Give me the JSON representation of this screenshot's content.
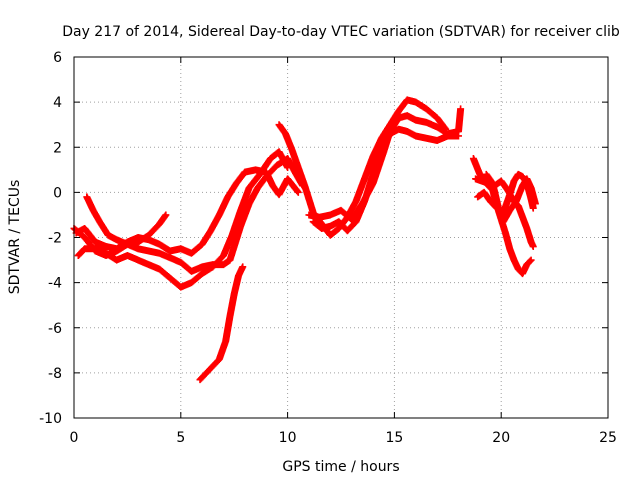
{
  "chart_data": {
    "type": "scatter",
    "title": "Day 217 of 2014, Sidereal Day-to-day VTEC variation (SDTVAR) for receiver clib",
    "xlabel": "GPS time / hours",
    "ylabel": "SDTVAR / TECUs",
    "xlim": [
      0,
      25
    ],
    "ylim": [
      -10,
      6
    ],
    "xticks": [
      0,
      5,
      10,
      15,
      20,
      25
    ],
    "yticks": [
      -10,
      -8,
      -6,
      -4,
      -2,
      0,
      2,
      4,
      6
    ],
    "grid": true,
    "marker": "+",
    "color": "#ff0000",
    "series": [
      {
        "points": [
          [
            0,
            -1.6
          ],
          [
            0.5,
            -2.0
          ],
          [
            1.0,
            -2.6
          ],
          [
            1.5,
            -2.8
          ],
          [
            2.0,
            -2.6
          ],
          [
            2.5,
            -2.3
          ],
          [
            3.0,
            -2.5
          ],
          [
            3.5,
            -2.6
          ],
          [
            4.0,
            -2.7
          ],
          [
            4.5,
            -2.9
          ],
          [
            5.0,
            -3.1
          ],
          [
            5.5,
            -3.5
          ],
          [
            6.0,
            -3.3
          ],
          [
            6.5,
            -3.2
          ],
          [
            7.0,
            -3.2
          ],
          [
            7.3,
            -3.0
          ],
          [
            7.5,
            -2.4
          ],
          [
            7.8,
            -1.5
          ],
          [
            8.2,
            -0.5
          ],
          [
            8.6,
            0.2
          ],
          [
            9.0,
            0.7
          ],
          [
            9.5,
            1.2
          ],
          [
            10.0,
            1.5
          ],
          [
            10.4,
            0.8
          ],
          [
            10.7,
            0.3
          ]
        ]
      },
      {
        "points": [
          [
            0.1,
            -1.8
          ],
          [
            0.5,
            -1.6
          ],
          [
            1.0,
            -2.2
          ],
          [
            1.5,
            -2.4
          ],
          [
            2.0,
            -2.5
          ],
          [
            2.5,
            -2.2
          ],
          [
            3.0,
            -2.0
          ],
          [
            3.5,
            -2.1
          ],
          [
            4.0,
            -2.3
          ],
          [
            4.5,
            -2.6
          ],
          [
            5.0,
            -2.5
          ],
          [
            5.5,
            -2.7
          ],
          [
            6.0,
            -2.3
          ],
          [
            6.4,
            -1.7
          ],
          [
            6.8,
            -1.0
          ],
          [
            7.2,
            -0.2
          ],
          [
            7.6,
            0.4
          ],
          [
            8.0,
            0.9
          ],
          [
            8.5,
            1.0
          ],
          [
            9.0,
            0.9
          ],
          [
            9.3,
            0.3
          ],
          [
            9.6,
            -0.1
          ],
          [
            10.0,
            0.6
          ],
          [
            10.5,
            0.0
          ]
        ]
      },
      {
        "points": [
          [
            0.2,
            -2.8
          ],
          [
            0.5,
            -2.5
          ],
          [
            1.0,
            -2.5
          ],
          [
            1.5,
            -2.7
          ],
          [
            2.0,
            -3.0
          ],
          [
            2.5,
            -2.8
          ],
          [
            3.0,
            -3.0
          ],
          [
            3.5,
            -3.2
          ],
          [
            4.0,
            -3.4
          ],
          [
            4.5,
            -3.8
          ],
          [
            5.0,
            -4.2
          ],
          [
            5.5,
            -4.0
          ],
          [
            6.0,
            -3.6
          ],
          [
            6.5,
            -3.3
          ],
          [
            7.0,
            -2.8
          ],
          [
            7.4,
            -1.9
          ],
          [
            7.8,
            -0.8
          ],
          [
            8.2,
            0.2
          ],
          [
            8.7,
            0.8
          ],
          [
            9.2,
            1.5
          ],
          [
            9.6,
            1.8
          ],
          [
            10.0,
            1.1
          ]
        ]
      },
      {
        "points": [
          [
            0.6,
            -0.2
          ],
          [
            0.9,
            -0.8
          ],
          [
            1.2,
            -1.3
          ],
          [
            1.6,
            -1.9
          ],
          [
            2.0,
            -2.1
          ],
          [
            2.5,
            -2.3
          ],
          [
            3.0,
            -2.2
          ],
          [
            3.5,
            -1.9
          ],
          [
            4.0,
            -1.4
          ],
          [
            4.3,
            -1.0
          ]
        ]
      },
      {
        "points": [
          [
            5.9,
            -8.3
          ],
          [
            6.3,
            -7.9
          ],
          [
            6.8,
            -7.4
          ],
          [
            7.1,
            -6.6
          ],
          [
            7.3,
            -5.5
          ],
          [
            7.5,
            -4.5
          ],
          [
            7.7,
            -3.7
          ],
          [
            7.9,
            -3.3
          ]
        ]
      },
      {
        "points": [
          [
            9.6,
            3.0
          ],
          [
            9.9,
            2.6
          ],
          [
            10.2,
            1.9
          ],
          [
            10.5,
            1.1
          ],
          [
            10.8,
            0.3
          ],
          [
            11.2,
            -0.9
          ],
          [
            11.6,
            -1.4
          ],
          [
            12.0,
            -1.9
          ],
          [
            12.4,
            -1.6
          ],
          [
            12.8,
            -1.1
          ],
          [
            13.2,
            -0.4
          ],
          [
            13.6,
            0.6
          ],
          [
            14.0,
            1.6
          ],
          [
            14.4,
            2.4
          ],
          [
            14.8,
            3.0
          ],
          [
            15.2,
            3.6
          ],
          [
            15.6,
            4.1
          ],
          [
            16.0,
            4.0
          ],
          [
            16.5,
            3.7
          ],
          [
            17.0,
            3.3
          ],
          [
            17.4,
            2.8
          ]
        ]
      },
      {
        "points": [
          [
            11.0,
            -1.0
          ],
          [
            11.5,
            -1.1
          ],
          [
            12.0,
            -1.0
          ],
          [
            12.5,
            -0.8
          ],
          [
            13.0,
            -1.2
          ],
          [
            13.5,
            -0.5
          ],
          [
            14.0,
            0.4
          ],
          [
            14.5,
            1.8
          ],
          [
            14.8,
            2.7
          ],
          [
            15.2,
            3.3
          ],
          [
            15.6,
            3.4
          ],
          [
            16.0,
            3.2
          ],
          [
            16.5,
            3.1
          ],
          [
            17.0,
            2.9
          ],
          [
            17.5,
            2.6
          ],
          [
            18.0,
            2.7
          ],
          [
            18.1,
            3.7
          ]
        ]
      },
      {
        "points": [
          [
            11.2,
            -1.3
          ],
          [
            11.6,
            -1.6
          ],
          [
            12.0,
            -1.5
          ],
          [
            12.4,
            -1.3
          ],
          [
            12.8,
            -1.7
          ],
          [
            13.2,
            -1.3
          ],
          [
            13.6,
            -0.4
          ],
          [
            14.0,
            0.8
          ],
          [
            14.4,
            2.0
          ],
          [
            14.8,
            2.6
          ],
          [
            15.2,
            2.8
          ],
          [
            15.6,
            2.7
          ],
          [
            16.0,
            2.5
          ],
          [
            16.5,
            2.4
          ],
          [
            17.0,
            2.3
          ],
          [
            17.5,
            2.5
          ],
          [
            18.0,
            2.5
          ]
        ]
      },
      {
        "points": [
          [
            18.7,
            1.5
          ],
          [
            19.0,
            0.8
          ],
          [
            19.3,
            0.4
          ],
          [
            19.6,
            0.1
          ],
          [
            19.8,
            -0.6
          ],
          [
            20.0,
            -1.2
          ],
          [
            20.2,
            -1.8
          ],
          [
            20.4,
            -2.5
          ],
          [
            20.6,
            -3.0
          ],
          [
            20.8,
            -3.4
          ],
          [
            21.0,
            -3.6
          ],
          [
            21.2,
            -3.2
          ],
          [
            21.4,
            -3.0
          ]
        ]
      },
      {
        "points": [
          [
            18.8,
            0.6
          ],
          [
            19.1,
            0.5
          ],
          [
            19.4,
            0.4
          ],
          [
            19.7,
            0.3
          ],
          [
            20.0,
            0.5
          ],
          [
            20.3,
            0.1
          ],
          [
            20.6,
            -0.4
          ],
          [
            20.8,
            -0.6
          ],
          [
            21.0,
            -1.1
          ],
          [
            21.2,
            -1.6
          ],
          [
            21.4,
            -2.2
          ],
          [
            21.5,
            -2.4
          ]
        ]
      },
      {
        "points": [
          [
            18.9,
            -0.2
          ],
          [
            19.2,
            0.0
          ],
          [
            19.5,
            -0.4
          ],
          [
            19.8,
            -0.7
          ],
          [
            20.1,
            -0.9
          ],
          [
            20.4,
            -0.1
          ],
          [
            20.6,
            0.5
          ],
          [
            20.8,
            0.8
          ],
          [
            21.0,
            0.7
          ],
          [
            21.2,
            0.4
          ],
          [
            21.4,
            -0.3
          ],
          [
            21.5,
            -0.7
          ]
        ]
      },
      {
        "points": [
          [
            19.3,
            0.8
          ],
          [
            19.6,
            0.4
          ],
          [
            19.9,
            -0.8
          ],
          [
            20.1,
            -1.3
          ],
          [
            20.4,
            -0.8
          ],
          [
            20.7,
            -0.4
          ],
          [
            21.0,
            0.3
          ],
          [
            21.2,
            0.6
          ],
          [
            21.4,
            0.2
          ],
          [
            21.6,
            -0.5
          ]
        ]
      }
    ]
  }
}
